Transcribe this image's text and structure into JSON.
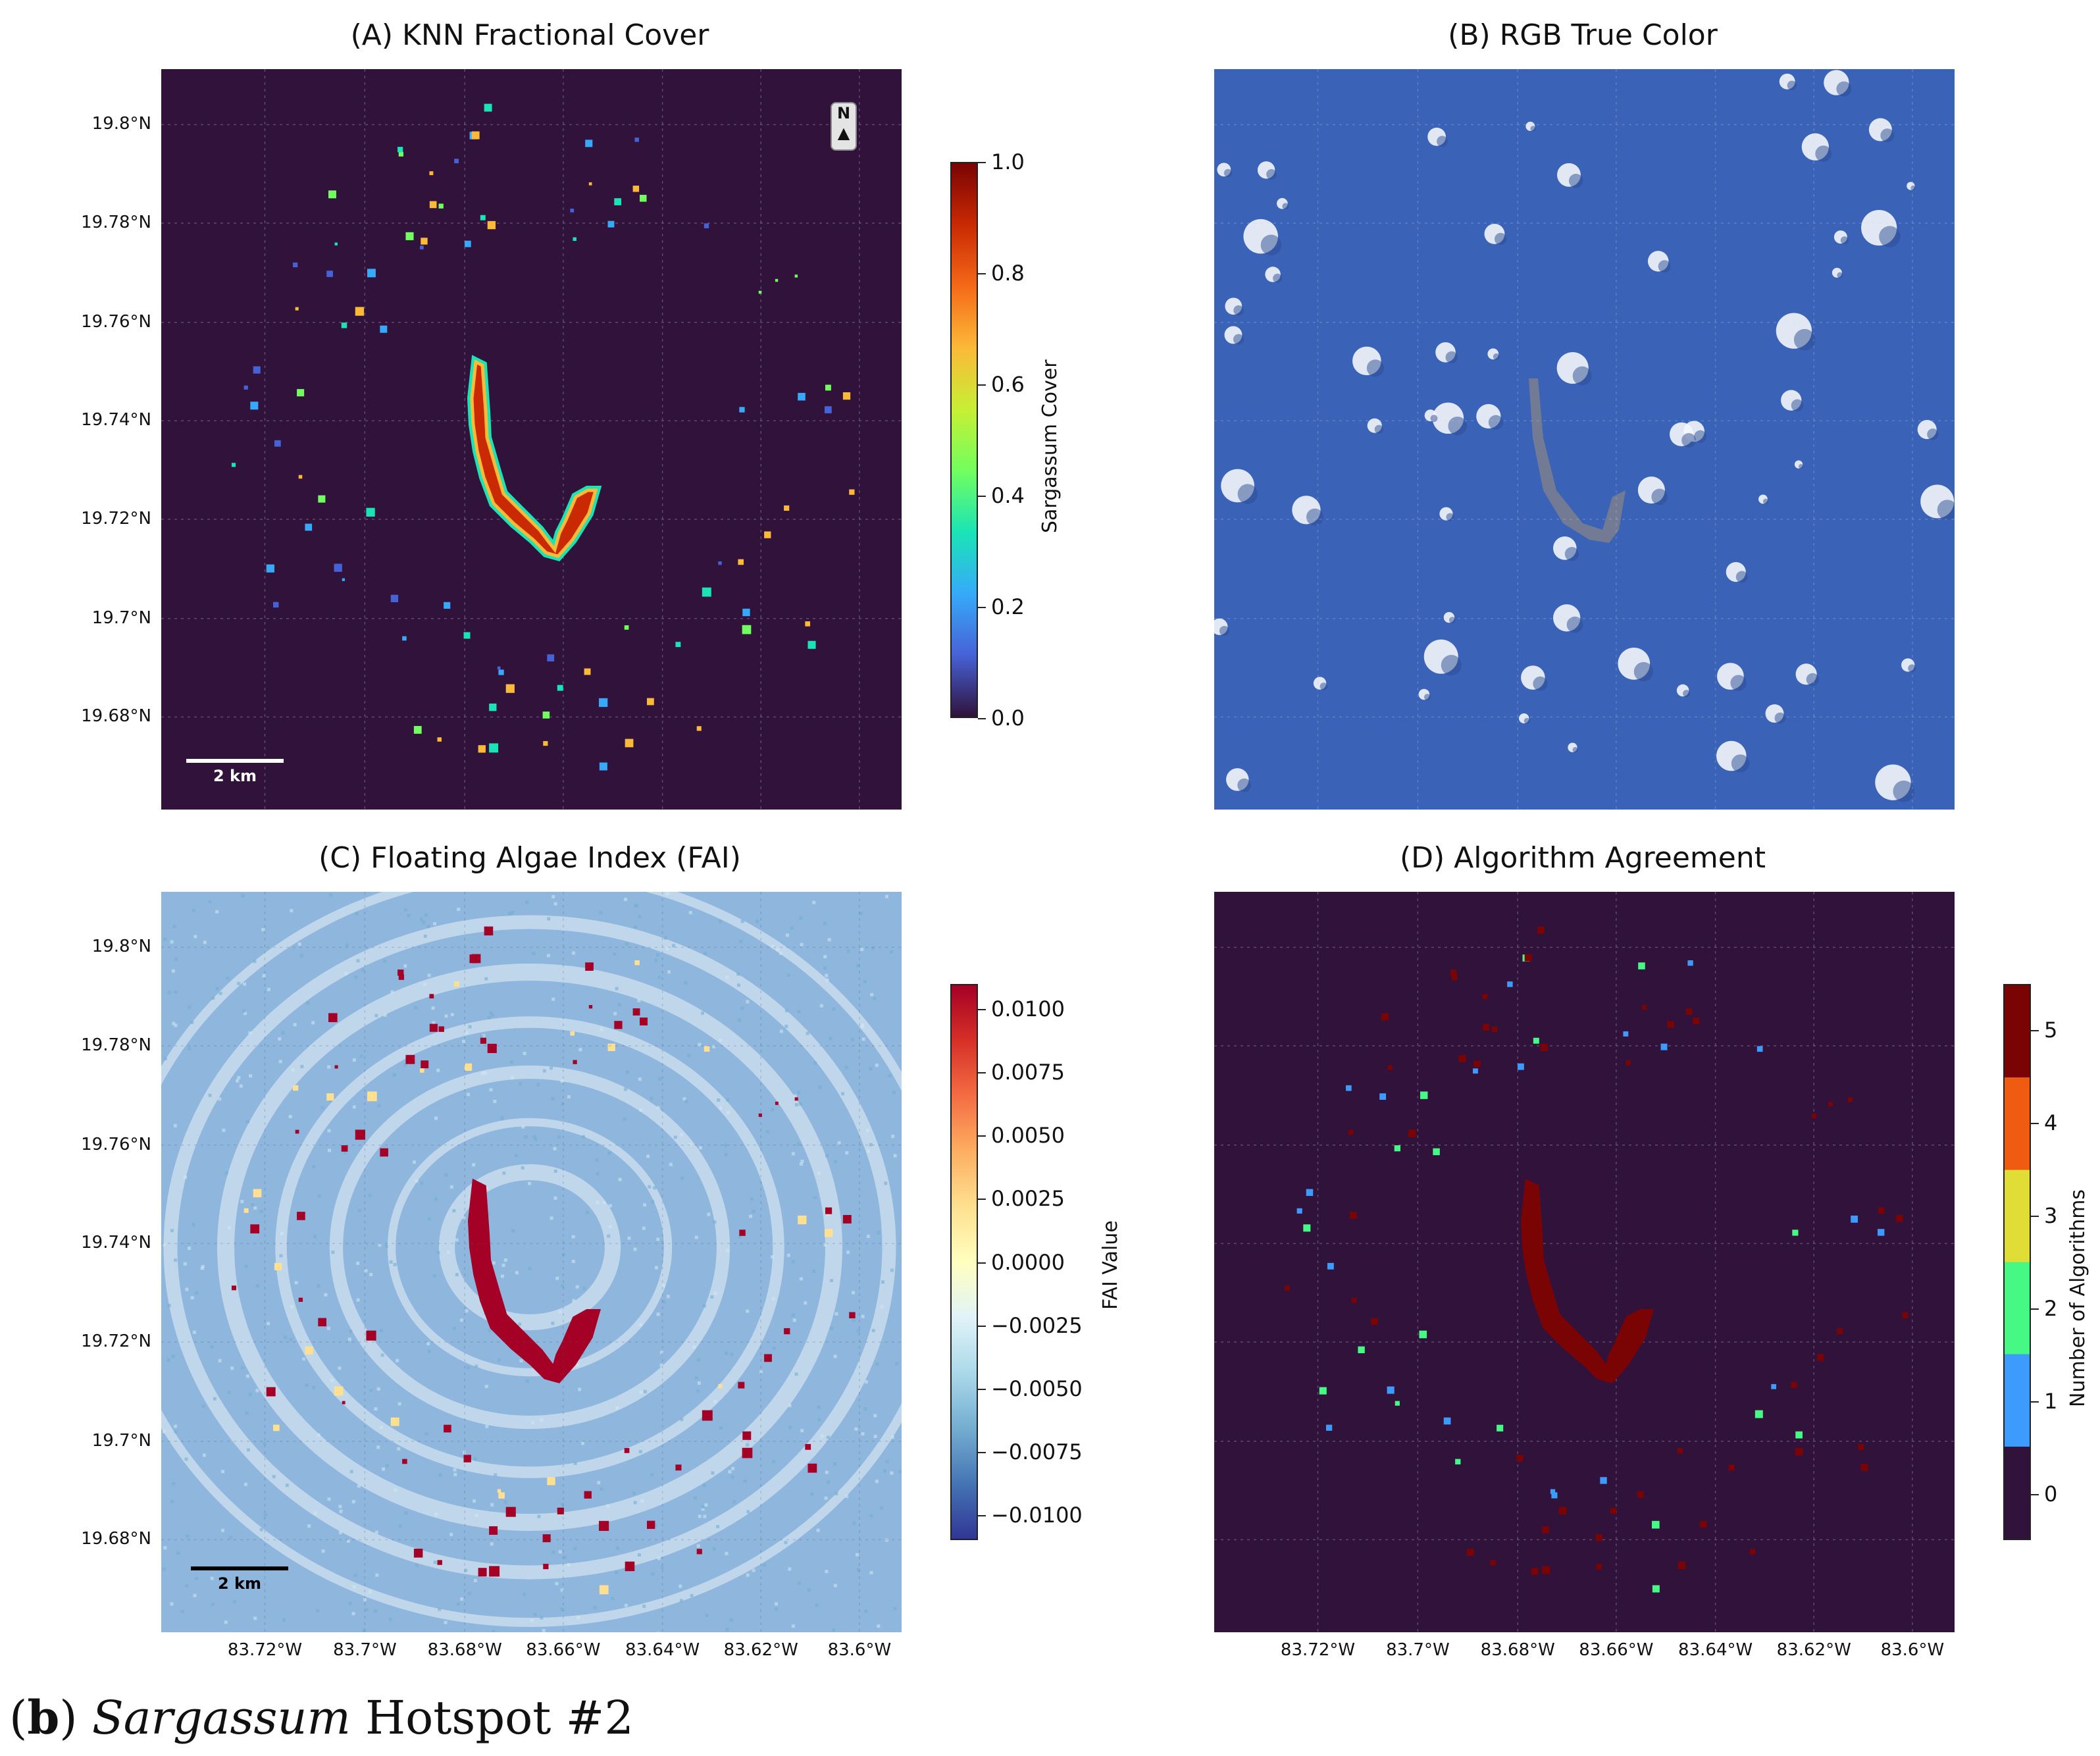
{
  "caption": {
    "paren_open": "(",
    "letter": "b",
    "paren_close": ")",
    "italic_word": "Sargassum",
    "rest": " Hotspot #2"
  },
  "axes": {
    "y_ticks": [
      "19.8°N",
      "19.78°N",
      "19.76°N",
      "19.74°N",
      "19.72°N",
      "19.7°N",
      "19.68°N"
    ],
    "x_ticks": [
      "83.72°W",
      "83.7°W",
      "83.68°W",
      "83.66°W",
      "83.64°W",
      "83.62°W",
      "83.6°W"
    ]
  },
  "chart_data": [
    {
      "type": "heatmap",
      "title": "(A) KNN Fractional Cover",
      "colorbar": {
        "label": "Sargassum Cover",
        "ticks": [
          "1.0",
          "0.8",
          "0.6",
          "0.4",
          "0.2",
          "0.0"
        ],
        "range": [
          0.0,
          1.0
        ],
        "colors": [
          "#30123b",
          "#4662d7",
          "#36aaf9",
          "#1ae4b6",
          "#72fe5e",
          "#c7ef34",
          "#fbb938",
          "#f56918",
          "#c92903",
          "#7a0403"
        ]
      },
      "scalebar": "2 km",
      "north_arrow": {
        "letter": "N",
        "arrow": "▲"
      },
      "lat_range": [
        19.662,
        19.812
      ],
      "lon_range": [
        83.735,
        83.585
      ],
      "background_color": "#30123b"
    },
    {
      "type": "heatmap",
      "title": "(B) RGB True Color",
      "background_color": "#3a63b8"
    },
    {
      "type": "heatmap",
      "title": "(C) Floating Algae Index (FAI)",
      "colorbar": {
        "label": "FAI Value",
        "ticks": [
          "0.0100",
          "0.0075",
          "0.0050",
          "0.0025",
          "0.0000",
          "−0.0025",
          "−0.0050",
          "−0.0075",
          "−0.0100"
        ],
        "range": [
          -0.011,
          0.011
        ],
        "colors": [
          "#313695",
          "#4575b4",
          "#74add1",
          "#abd9e9",
          "#e0f3f8",
          "#ffffbf",
          "#fee090",
          "#fdae61",
          "#f46d43",
          "#d73027",
          "#a50026"
        ]
      },
      "scalebar": "2 km",
      "background_color": "#8fb6dc"
    },
    {
      "type": "heatmap",
      "title": "(D) Algorithm Agreement",
      "colorbar": {
        "label": "Number of Algorithms",
        "ticks": [
          "5",
          "4",
          "3",
          "2",
          "1",
          "0"
        ],
        "range": [
          -0.5,
          5.5
        ],
        "colors": [
          "#30123b",
          "#3e9bfe",
          "#46f884",
          "#e1dd37",
          "#f05b12",
          "#7a0403"
        ]
      },
      "background_color": "#30123b"
    }
  ]
}
